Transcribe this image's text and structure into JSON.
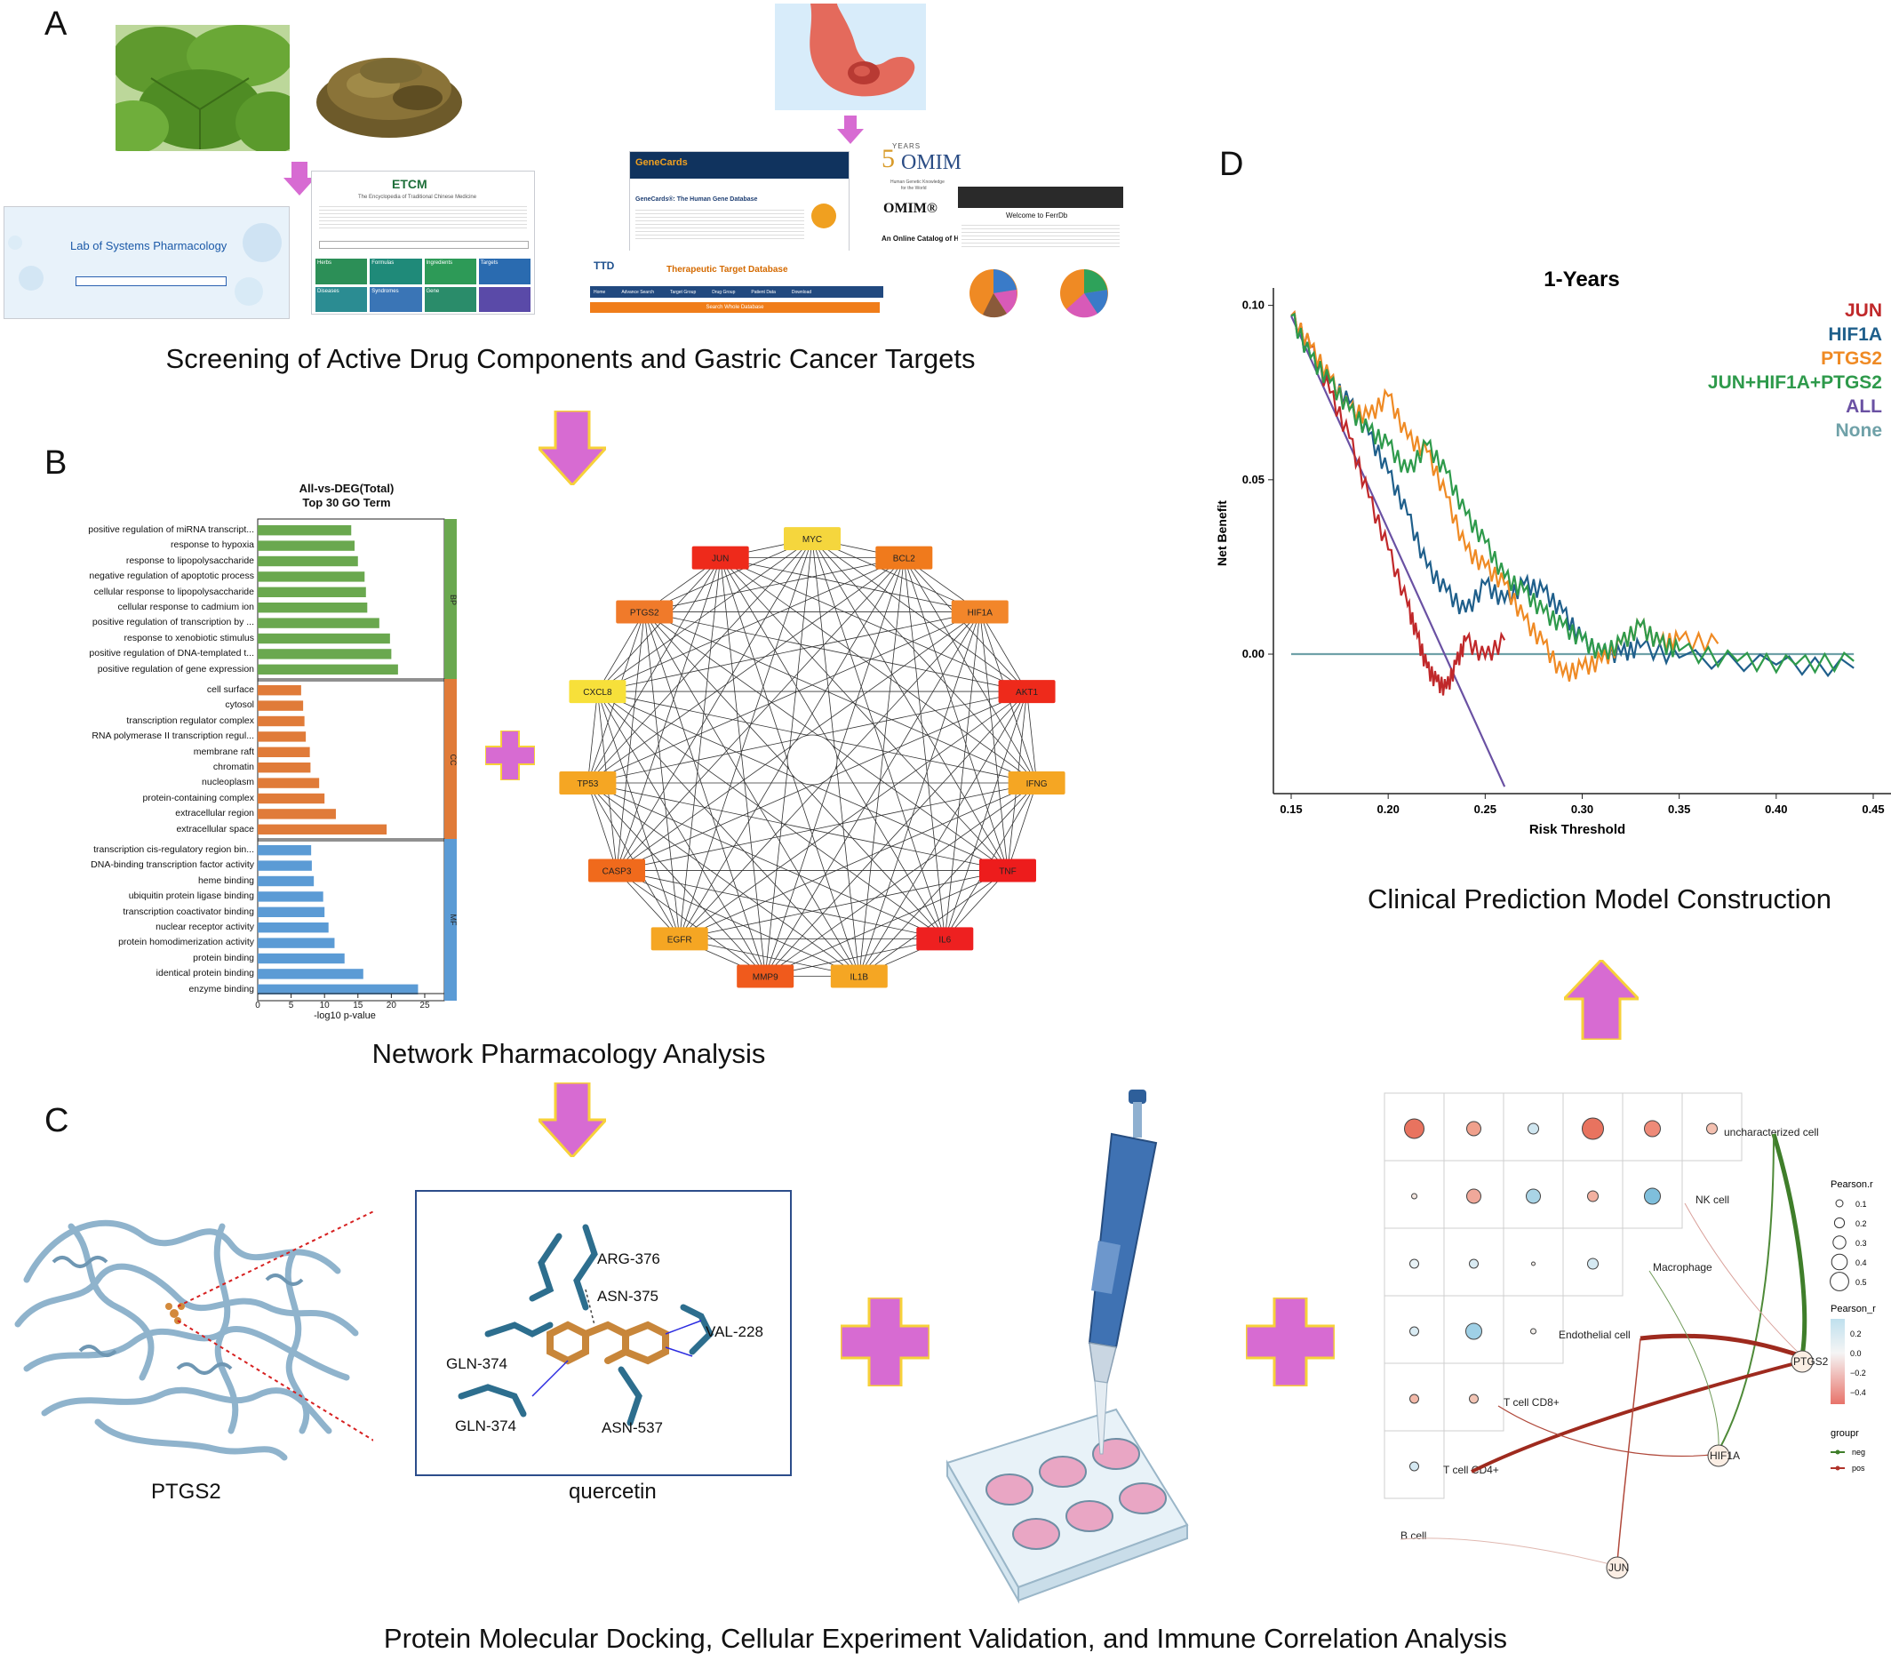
{
  "panels": {
    "a": "A",
    "b": "B",
    "c": "C",
    "d": "D"
  },
  "captions": {
    "a": "Screening of Active Drug Components and Gastric Cancer Targets",
    "b": "Network Pharmacology Analysis",
    "c": "Protein Molecular Docking, Cellular Experiment Validation, and Immune Correlation Analysis",
    "d": "Clinical Prediction Model Construction"
  },
  "screenshots": {
    "lsp_title": "Lab of Systems Pharmacology",
    "etcm_title": "ETCM",
    "etcm_subtitle": "The Encyclopedia of Traditional Chinese Medicine",
    "etcm_tiles": [
      "Herbs",
      "Formulas",
      "Ingredients",
      "Targets",
      "Diseases",
      "Syndromes",
      "Gene"
    ],
    "genecards_logo": "GeneCards",
    "genecards_title": "GeneCards®: The Human Gene Database",
    "ttd_logo": "TTD",
    "ttd_title": "Therapeutic Target Database",
    "ttd_menu": [
      "Home",
      "Advance Search",
      "Target Group",
      "Drug Group",
      "Patient Data",
      "Download"
    ],
    "ttd_search": "Search Whole Database",
    "omim_years": "YEARS",
    "omim_50": "5",
    "omim_mim": "OMIM",
    "omim_tag1": "Human Genetic Knowledge",
    "omim_tag2": "for the World",
    "omim_name": "OMIM®",
    "omim_desc": "An Online Catalog of Hu",
    "ferrdb_title": "Welcome to FerrDb"
  },
  "go_chart": {
    "type": "bar",
    "title_line1": "All-vs-DEG(Total)",
    "title_line2": "Top 30 GO Term",
    "xlabel": "-log10 p-value",
    "xlim": [
      0,
      27
    ],
    "xticks": [
      0,
      5,
      10,
      15,
      20,
      25
    ],
    "groups": [
      {
        "name": "BP",
        "color": "#6aa84f",
        "terms": [
          {
            "term": "positive regulation of miRNA transcript...",
            "value": 14
          },
          {
            "term": "response to hypoxia",
            "value": 14.5
          },
          {
            "term": "response to lipopolysaccharide",
            "value": 15
          },
          {
            "term": "negative regulation of apoptotic process",
            "value": 16
          },
          {
            "term": "cellular response to lipopolysaccharide",
            "value": 16.2
          },
          {
            "term": "cellular response to cadmium ion",
            "value": 16.4
          },
          {
            "term": "positive regulation of transcription by ...",
            "value": 18.2
          },
          {
            "term": "response to xenobiotic stimulus",
            "value": 19.8
          },
          {
            "term": "positive regulation of DNA-templated t...",
            "value": 20
          },
          {
            "term": "positive regulation of gene expression",
            "value": 21
          }
        ]
      },
      {
        "name": "CC",
        "color": "#e07b39",
        "terms": [
          {
            "term": "cell surface",
            "value": 6.5
          },
          {
            "term": "cytosol",
            "value": 6.8
          },
          {
            "term": "transcription regulator complex",
            "value": 7
          },
          {
            "term": "RNA polymerase II transcription regul...",
            "value": 7.2
          },
          {
            "term": "membrane raft",
            "value": 7.8
          },
          {
            "term": "chromatin",
            "value": 7.9
          },
          {
            "term": "nucleoplasm",
            "value": 9.2
          },
          {
            "term": "protein-containing complex",
            "value": 10
          },
          {
            "term": "extracellular region",
            "value": 11.7
          },
          {
            "term": "extracellular space",
            "value": 19.3
          }
        ]
      },
      {
        "name": "MF",
        "color": "#5b9bd5",
        "terms": [
          {
            "term": "transcription cis-regulatory region bin...",
            "value": 8
          },
          {
            "term": "DNA-binding transcription factor activity",
            "value": 8.1
          },
          {
            "term": "heme binding",
            "value": 8.4
          },
          {
            "term": "ubiquitin protein ligase binding",
            "value": 9.8
          },
          {
            "term": "transcription coactivator binding",
            "value": 10
          },
          {
            "term": "nuclear receptor activity",
            "value": 10.6
          },
          {
            "term": "protein homodimerization activity",
            "value": 11.5
          },
          {
            "term": "protein binding",
            "value": 13
          },
          {
            "term": "identical protein binding",
            "value": 15.8
          },
          {
            "term": "enzyme binding",
            "value": 24
          }
        ]
      }
    ]
  },
  "network": {
    "nodes": [
      {
        "label": "MYC",
        "color": "#f5d63d"
      },
      {
        "label": "BCL2",
        "color": "#f07a1c"
      },
      {
        "label": "HIF1A",
        "color": "#f2862a"
      },
      {
        "label": "AKT1",
        "color": "#ee2a1b"
      },
      {
        "label": "IFNG",
        "color": "#f5a623"
      },
      {
        "label": "TNF",
        "color": "#ed1c1c"
      },
      {
        "label": "IL6",
        "color": "#ee2020"
      },
      {
        "label": "IL1B",
        "color": "#f5a623"
      },
      {
        "label": "MMP9",
        "color": "#f05a1c"
      },
      {
        "label": "EGFR",
        "color": "#f5a623"
      },
      {
        "label": "CASP3",
        "color": "#f06a1c"
      },
      {
        "label": "TP53",
        "color": "#f5a623"
      },
      {
        "label": "CXCL8",
        "color": "#f7e03a"
      },
      {
        "label": "PTGS2",
        "color": "#f07a2a"
      },
      {
        "label": "JUN",
        "color": "#ee2a1b"
      }
    ]
  },
  "docking": {
    "protein_label": "PTGS2",
    "ligand_label": "quercetin",
    "residues": [
      "ARG-376",
      "ASN-375",
      "VAL-228",
      "GLN-374",
      "GLN-374",
      "ASN-537"
    ]
  },
  "dca_chart": {
    "type": "line",
    "title": "1-Years",
    "xlabel": "Risk Threshold",
    "ylabel": "Net Benefit",
    "xlim": [
      0.15,
      0.45
    ],
    "ylim": [
      -0.04,
      0.105
    ],
    "xtick_labels": [
      "0.15",
      "0.20",
      "0.25",
      "0.30",
      "0.35",
      "0.40",
      "0.45"
    ],
    "ytick_labels": [
      "0.10",
      "0.05",
      "0.00"
    ],
    "series": [
      {
        "name": "JUN",
        "color": "#c0282a",
        "x": [
          0.15,
          0.16,
          0.17,
          0.18,
          0.19,
          0.2,
          0.21,
          0.215,
          0.22,
          0.225,
          0.23,
          0.235,
          0.24,
          0.25,
          0.26
        ],
        "y": [
          0.097,
          0.088,
          0.075,
          0.062,
          0.045,
          0.03,
          0.014,
          0.005,
          -0.004,
          -0.008,
          -0.01,
          -0.003,
          0.004,
          -0.001,
          0.004
        ]
      },
      {
        "name": "HIF1A",
        "color": "#1f5f8b",
        "x": [
          0.15,
          0.16,
          0.17,
          0.18,
          0.19,
          0.2,
          0.21,
          0.22,
          0.23,
          0.24,
          0.25,
          0.26,
          0.27,
          0.28,
          0.29,
          0.3,
          0.31,
          0.32,
          0.33,
          0.35,
          0.4,
          0.44
        ],
        "y": [
          0.097,
          0.085,
          0.078,
          0.072,
          0.063,
          0.052,
          0.04,
          0.025,
          0.018,
          0.012,
          0.02,
          0.015,
          0.02,
          0.018,
          0.012,
          0.004,
          0.0,
          0.0,
          0.002,
          -0.001,
          -0.003,
          -0.004
        ]
      },
      {
        "name": "PTGS2",
        "color": "#ef8a24",
        "x": [
          0.15,
          0.16,
          0.17,
          0.18,
          0.19,
          0.2,
          0.21,
          0.22,
          0.23,
          0.24,
          0.25,
          0.26,
          0.27,
          0.28,
          0.29,
          0.3,
          0.31,
          0.32,
          0.33,
          0.34,
          0.35,
          0.37
        ],
        "y": [
          0.097,
          0.088,
          0.079,
          0.07,
          0.068,
          0.074,
          0.062,
          0.058,
          0.045,
          0.03,
          0.025,
          0.02,
          0.01,
          0.003,
          -0.006,
          -0.004,
          -0.002,
          0.003,
          0.008,
          0.003,
          0.004,
          0.003
        ]
      },
      {
        "name": "JUN+HIF1A+PTGS2",
        "color": "#2e9a4b",
        "x": [
          0.15,
          0.16,
          0.17,
          0.18,
          0.19,
          0.2,
          0.21,
          0.22,
          0.23,
          0.24,
          0.25,
          0.26,
          0.27,
          0.28,
          0.29,
          0.3,
          0.31,
          0.32,
          0.33,
          0.34,
          0.35,
          0.38,
          0.41,
          0.44
        ],
        "y": [
          0.097,
          0.085,
          0.078,
          0.07,
          0.064,
          0.06,
          0.052,
          0.06,
          0.052,
          0.04,
          0.032,
          0.022,
          0.018,
          0.012,
          0.008,
          0.004,
          0.0,
          0.003,
          0.008,
          0.003,
          0.001,
          -0.002,
          -0.003,
          -0.002
        ]
      },
      {
        "name": "ALL",
        "color": "#6a51a3",
        "x": [
          0.15,
          0.26
        ],
        "y": [
          0.097,
          -0.038
        ]
      },
      {
        "name": "None",
        "color": "#6fa1a8",
        "x": [
          0.15,
          0.44
        ],
        "y": [
          0,
          0
        ]
      }
    ]
  },
  "immune": {
    "cells": [
      "uncharacterized cell",
      "NK cell",
      "Macrophage",
      "Endothelial cell",
      "T cell CD8+",
      "T cell CD4+",
      "B cell"
    ],
    "genes": [
      "PTGS2",
      "HIF1A",
      "JUN"
    ],
    "legend_size_title": "Pearson.r",
    "legend_sizes": [
      "0.1",
      "0.2",
      "0.3",
      "0.4",
      "0.5"
    ],
    "legend_color_title": "Pearson_r",
    "legend_colors": [
      "0.2",
      "0.0",
      "−0.2",
      "−0.4"
    ],
    "legend_group_title": "groupr",
    "legend_groups": [
      "neg",
      "pos"
    ]
  }
}
